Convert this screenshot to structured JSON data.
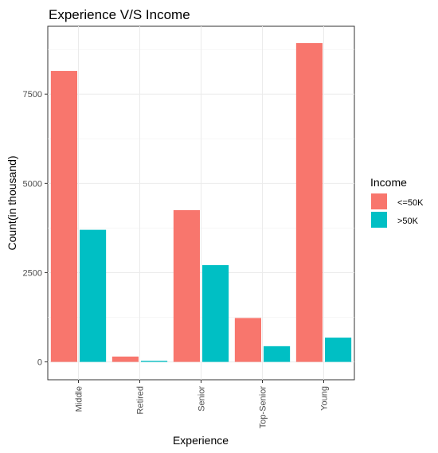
{
  "chart_data": {
    "type": "bar",
    "title": "Experience V/S Income",
    "xlabel": "Experience",
    "ylabel": "Count(in thousand)",
    "categories": [
      "Middle",
      "Retired",
      "Senior",
      "Top-Senior",
      "Young"
    ],
    "series": [
      {
        "name": "<=50K",
        "color": "#F8766D",
        "values": [
          8150,
          150,
          4250,
          1230,
          8930
        ]
      },
      {
        "name": ">50K",
        "color": "#00BFC4",
        "values": [
          3700,
          30,
          2710,
          440,
          680
        ]
      }
    ],
    "ylim": [
      -500,
      9400
    ],
    "yticks": [
      0,
      2500,
      5000,
      7500
    ],
    "ytick_labels": [
      "0",
      "2500",
      "5000",
      "7500"
    ],
    "grid": true,
    "legend": {
      "title": "Income",
      "position": "right"
    }
  }
}
